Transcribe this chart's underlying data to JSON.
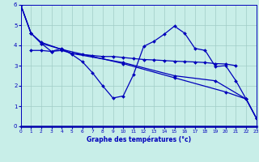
{
  "xlabel": "Graphe des températures (°c)",
  "xlim": [
    0,
    23
  ],
  "ylim": [
    0,
    6
  ],
  "xticks": [
    0,
    1,
    2,
    3,
    4,
    5,
    6,
    7,
    8,
    9,
    10,
    11,
    12,
    13,
    14,
    15,
    16,
    17,
    18,
    19,
    20,
    21,
    22,
    23
  ],
  "yticks": [
    0,
    1,
    2,
    3,
    4,
    5,
    6
  ],
  "bg_color": "#c8eee8",
  "grid_color": "#a0ccc6",
  "line_color": "#0000bb",
  "series": [
    {
      "x": [
        0,
        1,
        2,
        4,
        10,
        15,
        20,
        22,
        23
      ],
      "y": [
        6,
        4.6,
        4.1,
        3.8,
        3.1,
        2.4,
        1.7,
        1.35,
        0.4
      ]
    },
    {
      "x": [
        0,
        1,
        2,
        3,
        4,
        5,
        6,
        7,
        8,
        9,
        10,
        11,
        12,
        13,
        14,
        15,
        16,
        17,
        18,
        19,
        20,
        21,
        22,
        23
      ],
      "y": [
        6,
        4.6,
        4.1,
        3.7,
        3.85,
        3.55,
        3.2,
        2.65,
        2.0,
        1.4,
        1.5,
        2.55,
        3.95,
        4.2,
        4.55,
        4.95,
        4.6,
        3.85,
        3.75,
        2.95,
        3.0,
        2.25,
        1.35,
        0.4
      ]
    },
    {
      "x": [
        1,
        2,
        3,
        4,
        5,
        6,
        7,
        8,
        9,
        10,
        11,
        12,
        13,
        14,
        15,
        16,
        17,
        18,
        19,
        20,
        21
      ],
      "y": [
        3.75,
        3.75,
        3.7,
        3.75,
        3.6,
        3.55,
        3.5,
        3.45,
        3.45,
        3.4,
        3.35,
        3.3,
        3.28,
        3.25,
        3.22,
        3.2,
        3.18,
        3.15,
        3.1,
        3.08,
        3.0
      ]
    },
    {
      "x": [
        0,
        1,
        2,
        4,
        5,
        10,
        15,
        19,
        22,
        23
      ],
      "y": [
        6,
        4.6,
        4.15,
        3.8,
        3.6,
        3.15,
        2.5,
        2.25,
        1.35,
        0.4
      ]
    }
  ]
}
